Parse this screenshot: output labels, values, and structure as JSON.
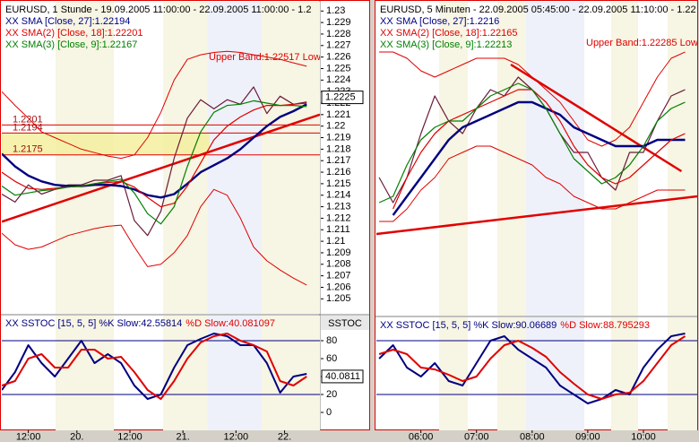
{
  "chart_data": [
    {
      "type": "line",
      "legend": "stacked",
      "title": "EURUSD, 1 Stunde - 19.09.2005 11:00:00 - 22.09.2005 11:00:00 - 1.2",
      "x": [
        0,
        3,
        6,
        9,
        12,
        15,
        18,
        21,
        24,
        27,
        30,
        33,
        36,
        39,
        42,
        45,
        48,
        51,
        54,
        57,
        60,
        63,
        66,
        69
      ],
      "xlim": [
        0,
        72
      ],
      "ylim": [
        1.2037,
        1.2308
      ],
      "yticks": [
        1.23,
        1.229,
        1.228,
        1.227,
        1.226,
        1.225,
        1.224,
        1.223,
        1.222,
        1.221,
        1.22,
        1.219,
        1.218,
        1.217,
        1.216,
        1.215,
        1.214,
        1.213,
        1.212,
        1.211,
        1.21,
        1.209,
        1.208,
        1.207,
        1.206,
        1.205
      ],
      "last": 1.2225,
      "series": [
        {
          "color": "#6a1b3a",
          "values": [
            1.2141,
            1.2134,
            1.2149,
            1.2141,
            1.2145,
            1.2149,
            1.2149,
            1.2153,
            1.2153,
            1.2157,
            1.2118,
            1.2105,
            1.2126,
            1.2172,
            1.2207,
            1.2223,
            1.2215,
            1.2223,
            1.2219,
            1.2234,
            1.2211,
            1.2226,
            1.2219,
            1.2221
          ]
        },
        {
          "name": "XX SMA [Close, 27]:1.22194",
          "color": "#000080",
          "values": [
            1.2176,
            1.2165,
            1.2157,
            1.2152,
            1.2149,
            1.2148,
            1.2148,
            1.2149,
            1.2149,
            1.2148,
            1.2145,
            1.214,
            1.2138,
            1.2141,
            1.215,
            1.216,
            1.2166,
            1.2172,
            1.218,
            1.219,
            1.22,
            1.2208,
            1.2213,
            1.2219
          ]
        },
        {
          "name": "XX SMA(2) [Close, 18]:1.22201",
          "color": "#e00000",
          "values": [
            1.216,
            1.2152,
            1.2146,
            1.2145,
            1.2146,
            1.2147,
            1.2148,
            1.215,
            1.2151,
            1.2152,
            1.2147,
            1.2138,
            1.213,
            1.2133,
            1.2148,
            1.2168,
            1.2188,
            1.22,
            1.2208,
            1.2214,
            1.2218,
            1.2218,
            1.2219,
            1.222
          ]
        },
        {
          "name": "XX SMA(3) [Close, 9]:1.22167",
          "color": "#008000",
          "values": [
            1.2148,
            1.214,
            1.2142,
            1.2144,
            1.2145,
            1.2147,
            1.2148,
            1.215,
            1.2152,
            1.2154,
            1.2142,
            1.2124,
            1.2115,
            1.213,
            1.2165,
            1.2195,
            1.2212,
            1.2218,
            1.2219,
            1.2222,
            1.222,
            1.2218,
            1.2218,
            1.2217
          ]
        }
      ],
      "band": {
        "name": "Upper Band:1.22517 Low",
        "color": "#e00000",
        "upper": [
          1.223,
          1.2218,
          1.2207,
          1.2195,
          1.219,
          1.2185,
          1.218,
          1.2177,
          1.2174,
          1.2172,
          1.2175,
          1.219,
          1.2212,
          1.224,
          1.2258,
          1.2262,
          1.2264,
          1.2265,
          1.2264,
          1.2262,
          1.226,
          1.2258,
          1.2255,
          1.2252
        ],
        "lower": [
          1.2107,
          1.2097,
          1.2093,
          1.2095,
          1.21,
          1.2105,
          1.2108,
          1.2111,
          1.2113,
          1.2114,
          1.2095,
          1.2078,
          1.208,
          1.209,
          1.2105,
          1.213,
          1.2145,
          1.214,
          1.212,
          1.2095,
          1.2083,
          1.2075,
          1.2068,
          1.2062
        ]
      },
      "hlines": [
        1.2201,
        1.2194,
        1.2175
      ],
      "zone": {
        "x": [
          0,
          47
        ],
        "values": [
          1.2175,
          1.2194
        ]
      },
      "trendlines": [
        {
          "color": "#e00000",
          "x": [
            0,
            72
          ],
          "values": [
            1.2117,
            1.221
          ]
        }
      ]
    },
    {
      "type": "line",
      "legend": "inline",
      "x": [
        0,
        3,
        6,
        9,
        12,
        15,
        18,
        21,
        24,
        27,
        30,
        33,
        36,
        39,
        42,
        45,
        48,
        51,
        54,
        57,
        60,
        63,
        66,
        69
      ],
      "xlim": [
        0,
        72
      ],
      "ylim": [
        -20,
        108
      ],
      "yticks": [
        0,
        20,
        40,
        60,
        80
      ],
      "axis_title": "SSTOC",
      "last": 40.0811,
      "levels": [
        20,
        80
      ],
      "xticks": [
        {
          "value": 6,
          "label": "12:00"
        },
        {
          "value": 17,
          "label": "20."
        },
        {
          "value": 29,
          "label": "12:00"
        },
        {
          "value": 41,
          "label": "21."
        },
        {
          "value": 53,
          "label": "12:00"
        },
        {
          "value": 64,
          "label": "22."
        }
      ],
      "series": [
        {
          "name": "XX SSTOC [15, 5, 5] %K Slow:42.55814",
          "color": "#000080",
          "values": [
            25,
            45,
            75,
            55,
            40,
            60,
            80,
            55,
            65,
            55,
            30,
            15,
            20,
            50,
            75,
            82,
            88,
            85,
            75,
            75,
            55,
            22,
            40,
            43
          ]
        },
        {
          "name": "%D Slow:40.081097",
          "color": "#e00000",
          "values": [
            30,
            35,
            60,
            65,
            50,
            50,
            70,
            70,
            60,
            62,
            45,
            25,
            15,
            35,
            60,
            78,
            85,
            88,
            80,
            75,
            68,
            35,
            30,
            40
          ]
        }
      ]
    },
    {
      "type": "line",
      "legend": "stacked",
      "title": "EURUSD, 5 Minuten - 22.09.2005 05:45:00 - 22.09.2005 11:10:00 - 1.22",
      "x": [
        15,
        30,
        45,
        60,
        75,
        90,
        105,
        120,
        135,
        150,
        165,
        180,
        195,
        210,
        225,
        240,
        255,
        270,
        285,
        300,
        315,
        330,
        345
      ],
      "xlim": [
        12,
        358
      ],
      "ylim": [
        1.2188,
        1.2238
      ],
      "series": [
        {
          "color": "#6a1b3a",
          "values": [
            1.221,
            1.2206,
            1.221,
            1.2217,
            1.2223,
            1.2219,
            1.2217,
            1.2221,
            1.2224,
            1.2223,
            1.2226,
            1.2224,
            1.2221,
            1.2217,
            1.2214,
            1.2214,
            1.221,
            1.2208,
            1.2214,
            1.2214,
            1.2219,
            1.2223,
            1.2224
          ]
        },
        {
          "name": "XX SMA [Close, 27]:1.2216",
          "color": "#000080",
          "values": [
            null,
            1.2204,
            1.2207,
            1.221,
            1.2213,
            1.2216,
            1.2218,
            1.2219,
            1.222,
            1.2221,
            1.2222,
            1.2222,
            1.2221,
            1.222,
            1.2218,
            1.2217,
            1.2216,
            1.2215,
            1.2215,
            1.2215,
            1.2216,
            1.2216,
            1.2216
          ]
        },
        {
          "name": "XX SMA(2) [Close, 18]:1.22165",
          "color": "#e00000",
          "values": [
            null,
            1.2205,
            1.221,
            1.2214,
            1.2217,
            1.2219,
            1.222,
            1.2221,
            1.2222,
            1.2223,
            1.2224,
            1.2224,
            1.2222,
            1.2219,
            1.2215,
            1.2212,
            1.221,
            1.2209,
            1.221,
            1.2212,
            1.2214,
            1.2216,
            1.2217
          ]
        },
        {
          "name": "XX SMA(3) [Close, 9]:1.22213",
          "color": "#008000",
          "values": [
            1.2206,
            1.2207,
            1.2212,
            1.2216,
            1.2218,
            1.2219,
            1.2219,
            1.2221,
            1.2223,
            1.2224,
            1.2225,
            1.2224,
            1.2221,
            1.2217,
            1.2213,
            1.2211,
            1.2209,
            1.221,
            1.2212,
            1.2215,
            1.2219,
            1.2221,
            1.2222
          ]
        }
      ],
      "band": {
        "name": "Upper Band:1.22285 Low",
        "color": "#e00000",
        "upper": [
          1.223,
          1.223,
          1.2229,
          1.2227,
          1.2226,
          1.2227,
          1.2228,
          1.2229,
          1.2229,
          1.2229,
          1.2228,
          1.2226,
          1.2224,
          1.2222,
          1.2219,
          1.2216,
          1.2215,
          1.2216,
          1.2218,
          1.2222,
          1.2226,
          1.2229,
          1.223
        ],
        "lower": [
          1.2203,
          1.2203,
          1.2205,
          1.2208,
          1.221,
          1.2213,
          1.2214,
          1.2215,
          1.2215,
          1.2214,
          1.2213,
          1.2212,
          1.221,
          1.2209,
          1.2207,
          1.2206,
          1.2205,
          1.2205,
          1.2206,
          1.2207,
          1.2208,
          1.2208,
          1.2208
        ]
      },
      "trendlines": [
        {
          "color": "#e00000",
          "x": [
            12,
            358
          ],
          "values": [
            1.2201,
            1.2207
          ]
        },
        {
          "color": "#e00000",
          "x": [
            157,
            341
          ],
          "values": [
            1.2228,
            1.2211
          ]
        }
      ]
    },
    {
      "type": "line",
      "legend": "inline",
      "x": [
        15,
        30,
        45,
        60,
        75,
        90,
        105,
        120,
        135,
        150,
        165,
        180,
        195,
        210,
        225,
        240,
        255,
        270,
        285,
        300,
        315,
        330,
        345
      ],
      "xlim": [
        12,
        358
      ],
      "ylim": [
        -20,
        106
      ],
      "levels": [
        20,
        80
      ],
      "xticks": [
        {
          "value": 60,
          "label": "06:00"
        },
        {
          "value": 120,
          "label": "07:00"
        },
        {
          "value": 180,
          "label": "08:00"
        },
        {
          "value": 240,
          "label": "09:00"
        },
        {
          "value": 300,
          "label": "10:00"
        }
      ],
      "series": [
        {
          "name": "XX SSTOC [15, 5, 5] %K Slow:90.06689",
          "color": "#000080",
          "values": [
            60,
            75,
            50,
            40,
            55,
            35,
            30,
            55,
            80,
            85,
            70,
            60,
            50,
            30,
            20,
            10,
            15,
            25,
            20,
            50,
            70,
            85,
            88
          ]
        },
        {
          "name": "%D Slow:88.795293",
          "color": "#e00000",
          "values": [
            65,
            70,
            65,
            50,
            48,
            42,
            35,
            40,
            60,
            75,
            80,
            72,
            62,
            45,
            32,
            20,
            15,
            20,
            22,
            35,
            55,
            75,
            85
          ]
        }
      ]
    }
  ]
}
